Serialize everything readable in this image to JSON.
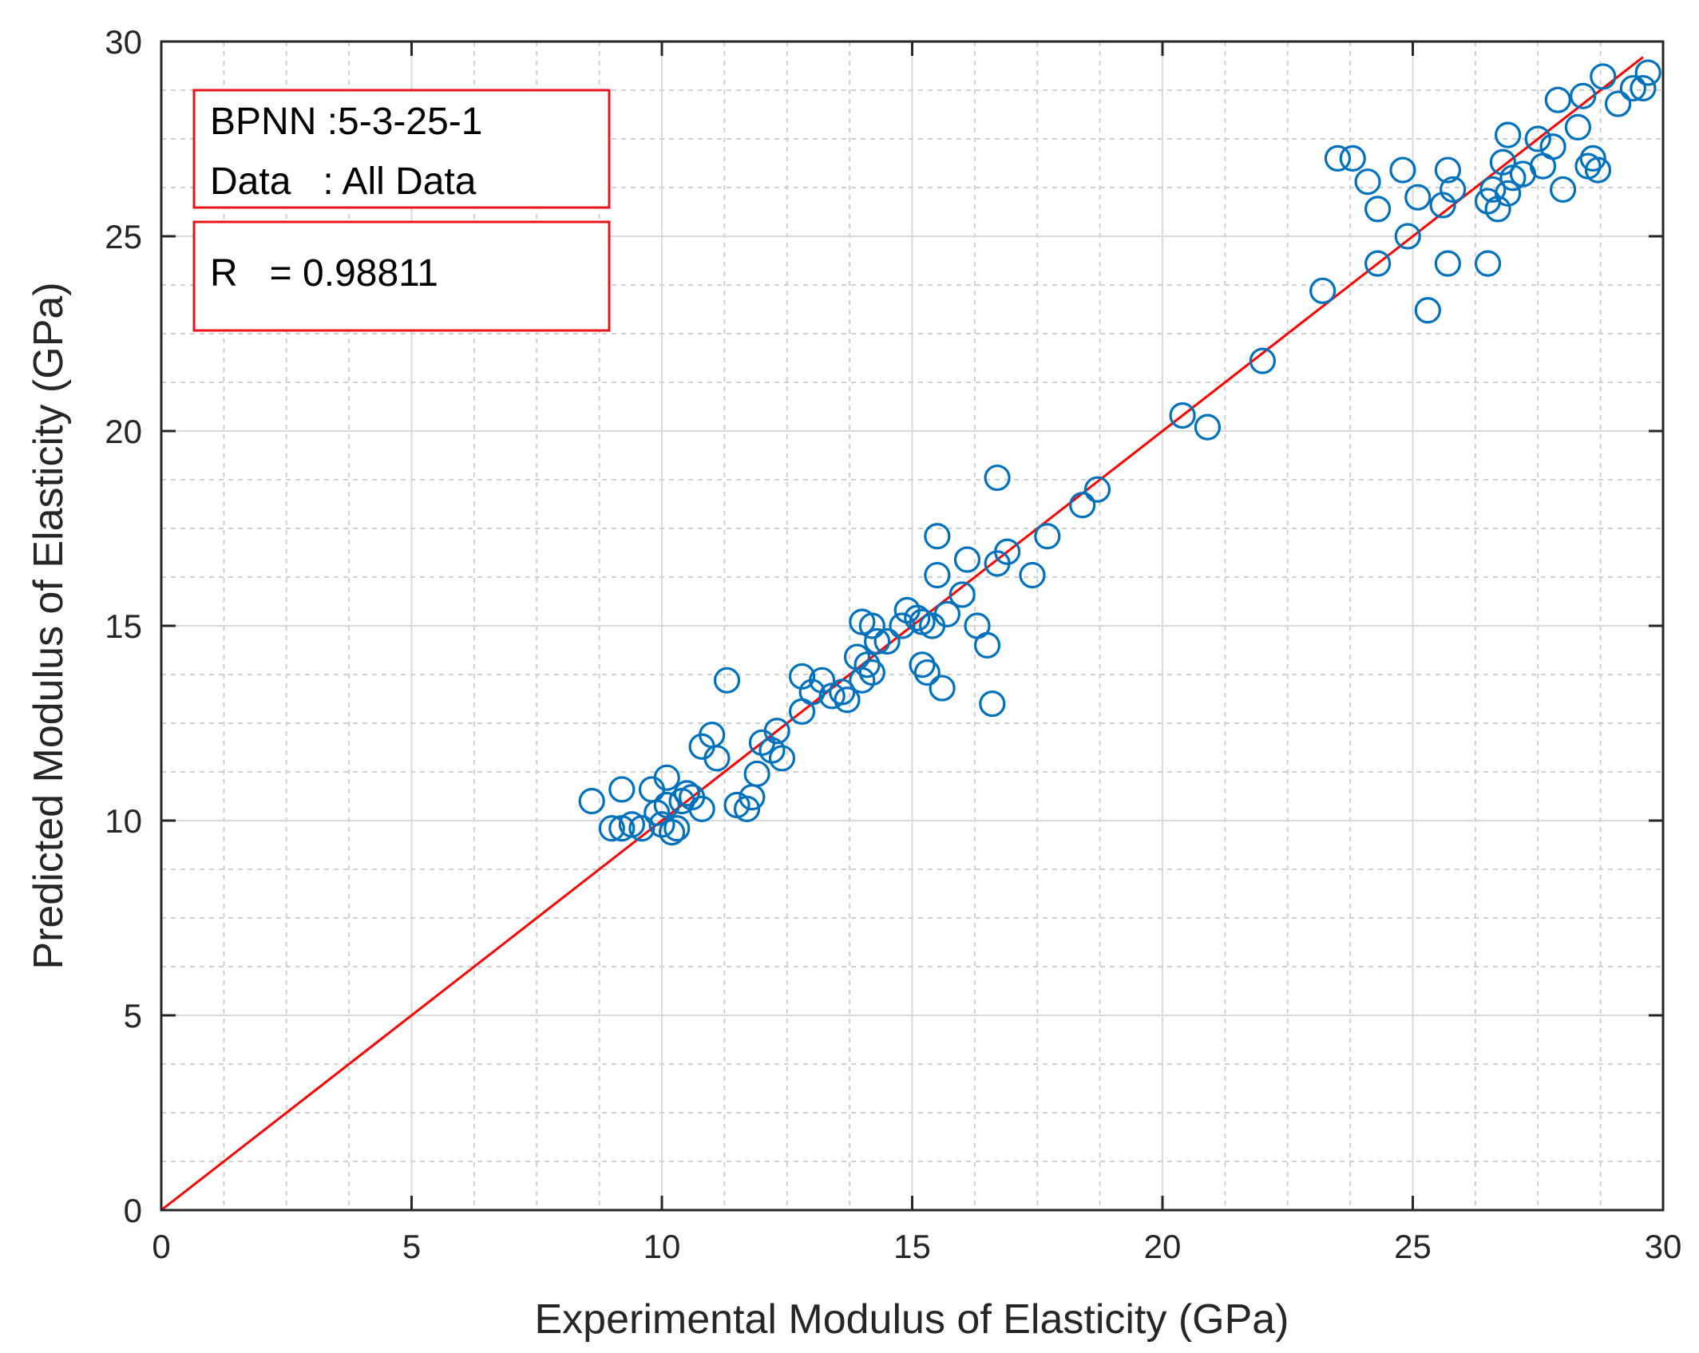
{
  "chart_data": {
    "type": "scatter",
    "xlabel": "Experimental Modulus of Elasticity (GPa)",
    "ylabel": "Predicted Modulus of Elasticity (GPa)",
    "xlim": [
      0,
      30
    ],
    "ylim": [
      0,
      30
    ],
    "x_ticks": [
      "0",
      "5",
      "10",
      "15",
      "20",
      "25",
      "30"
    ],
    "y_ticks": [
      "0",
      "5",
      "10",
      "15",
      "20",
      "25",
      "30"
    ],
    "grid": true,
    "minor_grid": true,
    "annotations": {
      "line1": "BPNN :5-3-25-1",
      "line2": "Data   : All Data",
      "line3": "R   = 0.98811"
    },
    "fit_line": {
      "x": [
        0,
        29.6
      ],
      "y": [
        0,
        29.6
      ],
      "color": "#ff0000"
    },
    "marker_color": "#0072bd",
    "points": [
      [
        8.6,
        10.5
      ],
      [
        9.0,
        9.8
      ],
      [
        9.2,
        10.8
      ],
      [
        9.2,
        9.8
      ],
      [
        9.4,
        9.9
      ],
      [
        9.6,
        9.8
      ],
      [
        9.8,
        10.8
      ],
      [
        9.9,
        10.2
      ],
      [
        10.0,
        9.9
      ],
      [
        10.1,
        10.4
      ],
      [
        10.1,
        11.1
      ],
      [
        10.2,
        9.7
      ],
      [
        10.3,
        9.8
      ],
      [
        10.4,
        10.5
      ],
      [
        10.5,
        10.7
      ],
      [
        10.6,
        10.6
      ],
      [
        10.8,
        10.3
      ],
      [
        10.8,
        11.9
      ],
      [
        11.0,
        12.2
      ],
      [
        11.1,
        11.6
      ],
      [
        11.3,
        13.6
      ],
      [
        11.5,
        10.4
      ],
      [
        11.7,
        10.3
      ],
      [
        11.8,
        10.6
      ],
      [
        11.9,
        11.2
      ],
      [
        12.0,
        12.0
      ],
      [
        12.2,
        11.8
      ],
      [
        12.3,
        12.3
      ],
      [
        12.4,
        11.6
      ],
      [
        12.8,
        12.8
      ],
      [
        12.8,
        13.7
      ],
      [
        13.0,
        13.3
      ],
      [
        13.2,
        13.6
      ],
      [
        13.4,
        13.2
      ],
      [
        13.6,
        13.3
      ],
      [
        13.7,
        13.1
      ],
      [
        13.9,
        14.2
      ],
      [
        14.0,
        13.6
      ],
      [
        14.0,
        15.1
      ],
      [
        14.1,
        14.0
      ],
      [
        14.2,
        13.8
      ],
      [
        14.2,
        15.0
      ],
      [
        14.3,
        14.6
      ],
      [
        14.5,
        14.6
      ],
      [
        14.8,
        15.0
      ],
      [
        14.9,
        15.4
      ],
      [
        15.1,
        15.2
      ],
      [
        15.2,
        14.0
      ],
      [
        15.2,
        15.1
      ],
      [
        15.3,
        13.8
      ],
      [
        15.4,
        15.0
      ],
      [
        15.5,
        17.3
      ],
      [
        15.5,
        16.3
      ],
      [
        15.6,
        13.4
      ],
      [
        15.7,
        15.3
      ],
      [
        16.0,
        15.8
      ],
      [
        16.1,
        16.7
      ],
      [
        16.3,
        15.0
      ],
      [
        16.5,
        14.5
      ],
      [
        16.6,
        13.0
      ],
      [
        16.7,
        18.8
      ],
      [
        16.7,
        16.6
      ],
      [
        16.9,
        16.9
      ],
      [
        17.4,
        16.3
      ],
      [
        17.7,
        17.3
      ],
      [
        18.4,
        18.1
      ],
      [
        18.7,
        18.5
      ],
      [
        20.4,
        20.4
      ],
      [
        20.9,
        20.1
      ],
      [
        22.0,
        21.8
      ],
      [
        23.2,
        23.6
      ],
      [
        23.5,
        27.0
      ],
      [
        23.8,
        27.0
      ],
      [
        24.1,
        26.4
      ],
      [
        24.3,
        24.3
      ],
      [
        24.3,
        25.7
      ],
      [
        24.8,
        26.7
      ],
      [
        24.9,
        25.0
      ],
      [
        25.1,
        26.0
      ],
      [
        25.3,
        23.1
      ],
      [
        25.6,
        25.8
      ],
      [
        25.7,
        24.3
      ],
      [
        25.7,
        26.7
      ],
      [
        25.8,
        26.2
      ],
      [
        26.5,
        24.3
      ],
      [
        26.5,
        25.9
      ],
      [
        26.6,
        26.2
      ],
      [
        26.7,
        25.7
      ],
      [
        26.8,
        26.9
      ],
      [
        26.9,
        26.1
      ],
      [
        26.9,
        27.6
      ],
      [
        27.0,
        26.5
      ],
      [
        27.2,
        26.6
      ],
      [
        27.5,
        27.5
      ],
      [
        27.6,
        26.8
      ],
      [
        27.8,
        27.3
      ],
      [
        27.9,
        28.5
      ],
      [
        28.0,
        26.2
      ],
      [
        28.3,
        27.8
      ],
      [
        28.4,
        28.6
      ],
      [
        28.5,
        26.8
      ],
      [
        28.6,
        27.0
      ],
      [
        28.7,
        26.7
      ],
      [
        28.8,
        29.1
      ],
      [
        29.1,
        28.4
      ],
      [
        29.4,
        28.8
      ],
      [
        29.6,
        28.8
      ],
      [
        29.7,
        29.2
      ]
    ]
  }
}
